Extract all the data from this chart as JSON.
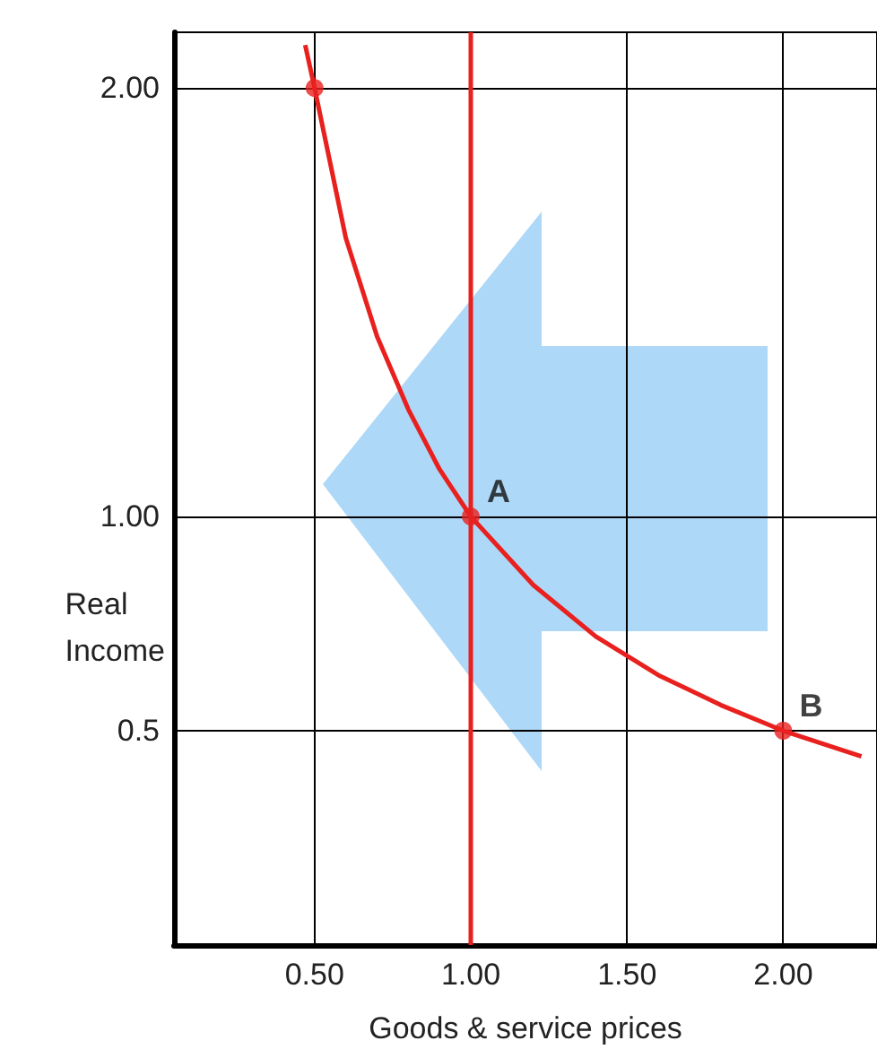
{
  "chart_data": {
    "type": "line",
    "xlabel": "Goods & service prices",
    "ylabel": "Real Income",
    "series": [
      {
        "color": "#e8201e",
        "marker": "none",
        "x": [
          0.47,
          0.5,
          0.6,
          0.7,
          0.8,
          0.9,
          1,
          1.2,
          1.4,
          1.6,
          1.8,
          2,
          2.25
        ],
        "values": [
          2.1,
          2,
          1.65,
          1.42,
          1.25,
          1.11,
          1,
          0.84,
          0.72,
          0.63,
          0.56,
          0.5,
          0.44
        ]
      },
      {
        "type": "scatter",
        "color": "#e8201e",
        "marker": "circle",
        "x": [
          0.5,
          1,
          2
        ],
        "values": [
          2,
          1,
          0.5
        ]
      }
    ],
    "xlim": [
      0.05,
      2.3
    ],
    "xticks": [
      {
        "value": 0.5,
        "label": "0.50"
      },
      {
        "value": 1,
        "label": "1.00"
      },
      {
        "value": 1.5,
        "label": "1.50"
      },
      {
        "value": 2,
        "label": "2.00"
      }
    ],
    "ylim": [
      0,
      2.13
    ],
    "yticks": [
      {
        "value": 0.5,
        "label": "0.5"
      },
      {
        "value": 1,
        "label": "1.00"
      },
      {
        "value": 2,
        "label": "2.00"
      }
    ],
    "grid": true,
    "ref_lines": [
      {
        "axis": "x",
        "value": 1,
        "color": "#e8201e"
      }
    ],
    "annotations": [
      {
        "text": "A",
        "x": 1,
        "y": 1
      },
      {
        "text": "B",
        "x": 2,
        "y": 0.5
      }
    ]
  }
}
